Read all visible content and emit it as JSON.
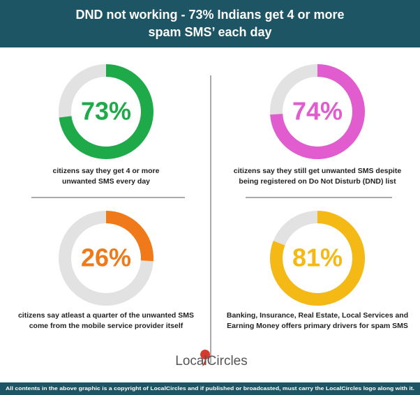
{
  "title": [
    "DND not working - 73% Indians get 4 or more",
    "spam SMS’ each day"
  ],
  "chart_data": [
    {
      "type": "donut",
      "values": [
        73
      ],
      "value_labels": [
        "73%"
      ],
      "color": "#1faa4a",
      "caption": [
        "citizens say they get 4 or more",
        "unwanted SMS every day"
      ]
    },
    {
      "type": "donut",
      "values": [
        74
      ],
      "value_labels": [
        "74%"
      ],
      "color": "#e05ccf",
      "caption": [
        "citizens say they still get unwanted SMS despite",
        "being registered on Do Not Disturb (DND) list"
      ]
    },
    {
      "type": "donut",
      "values": [
        26
      ],
      "value_labels": [
        "26%"
      ],
      "color": "#f07a1a",
      "caption": [
        "citizens say atleast a quarter of the unwanted SMS",
        "come from the mobile service provider itself"
      ]
    },
    {
      "type": "donut",
      "values": [
        81
      ],
      "value_labels": [
        "81%"
      ],
      "color": "#f5b915",
      "caption": [
        "Banking, Insurance, Real Estate, Local Services and",
        "Earning Money offers primary drivers for spam SMS"
      ]
    }
  ],
  "logo": "LocalCircles",
  "footer": "All contents in the above graphic is a copyright of LocalCircles and if published or broadcasted, must carry the LocalCircles logo along with it."
}
